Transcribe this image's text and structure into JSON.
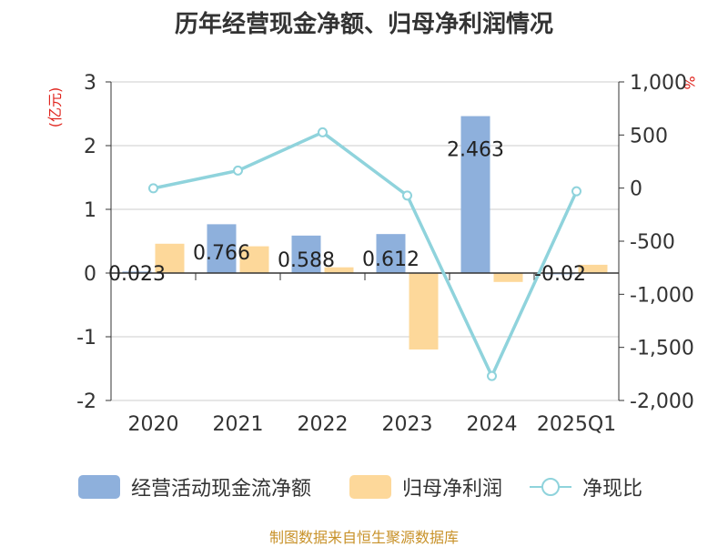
{
  "title": "历年经营现金净额、归母净利润情况",
  "source": "制图数据来自恒生聚源数据库",
  "chart_data": {
    "type": "bar",
    "title": "历年经营现金净额、归母净利润情况",
    "categories": [
      "2020",
      "2021",
      "2022",
      "2023",
      "2024",
      "2025Q1"
    ],
    "left_axis": {
      "unit_label": "(亿元)",
      "ylim": [
        -2,
        3
      ],
      "ticks": [
        "3",
        "2",
        "1",
        "0",
        "-1",
        "-2"
      ]
    },
    "right_axis": {
      "unit_label": "%",
      "ylim": [
        -2000,
        1000
      ],
      "ticks": [
        "1,000",
        "500",
        "0",
        "-500",
        "-1,000",
        "-1,500",
        "-2,000"
      ]
    },
    "grid": true,
    "legend_position": "bottom",
    "series": [
      {
        "name": "经营活动现金流净额",
        "type": "bar",
        "axis": "left",
        "color": "#8eb0dc",
        "values": [
          0.023,
          0.766,
          0.588,
          0.612,
          2.463,
          -0.02
        ],
        "labels": [
          "0.023",
          "0.766",
          "0.588",
          "0.612",
          "2.463",
          "-0.02"
        ]
      },
      {
        "name": "归母净利润",
        "type": "bar",
        "axis": "left",
        "color": "#fdd89a",
        "values": [
          0.46,
          0.42,
          0.09,
          -1.2,
          -0.14,
          0.13
        ]
      },
      {
        "name": "净现比",
        "type": "line",
        "axis": "right",
        "color": "#8fd3dc",
        "values": [
          -2,
          165,
          525,
          -70,
          -1770,
          -30
        ]
      }
    ]
  }
}
